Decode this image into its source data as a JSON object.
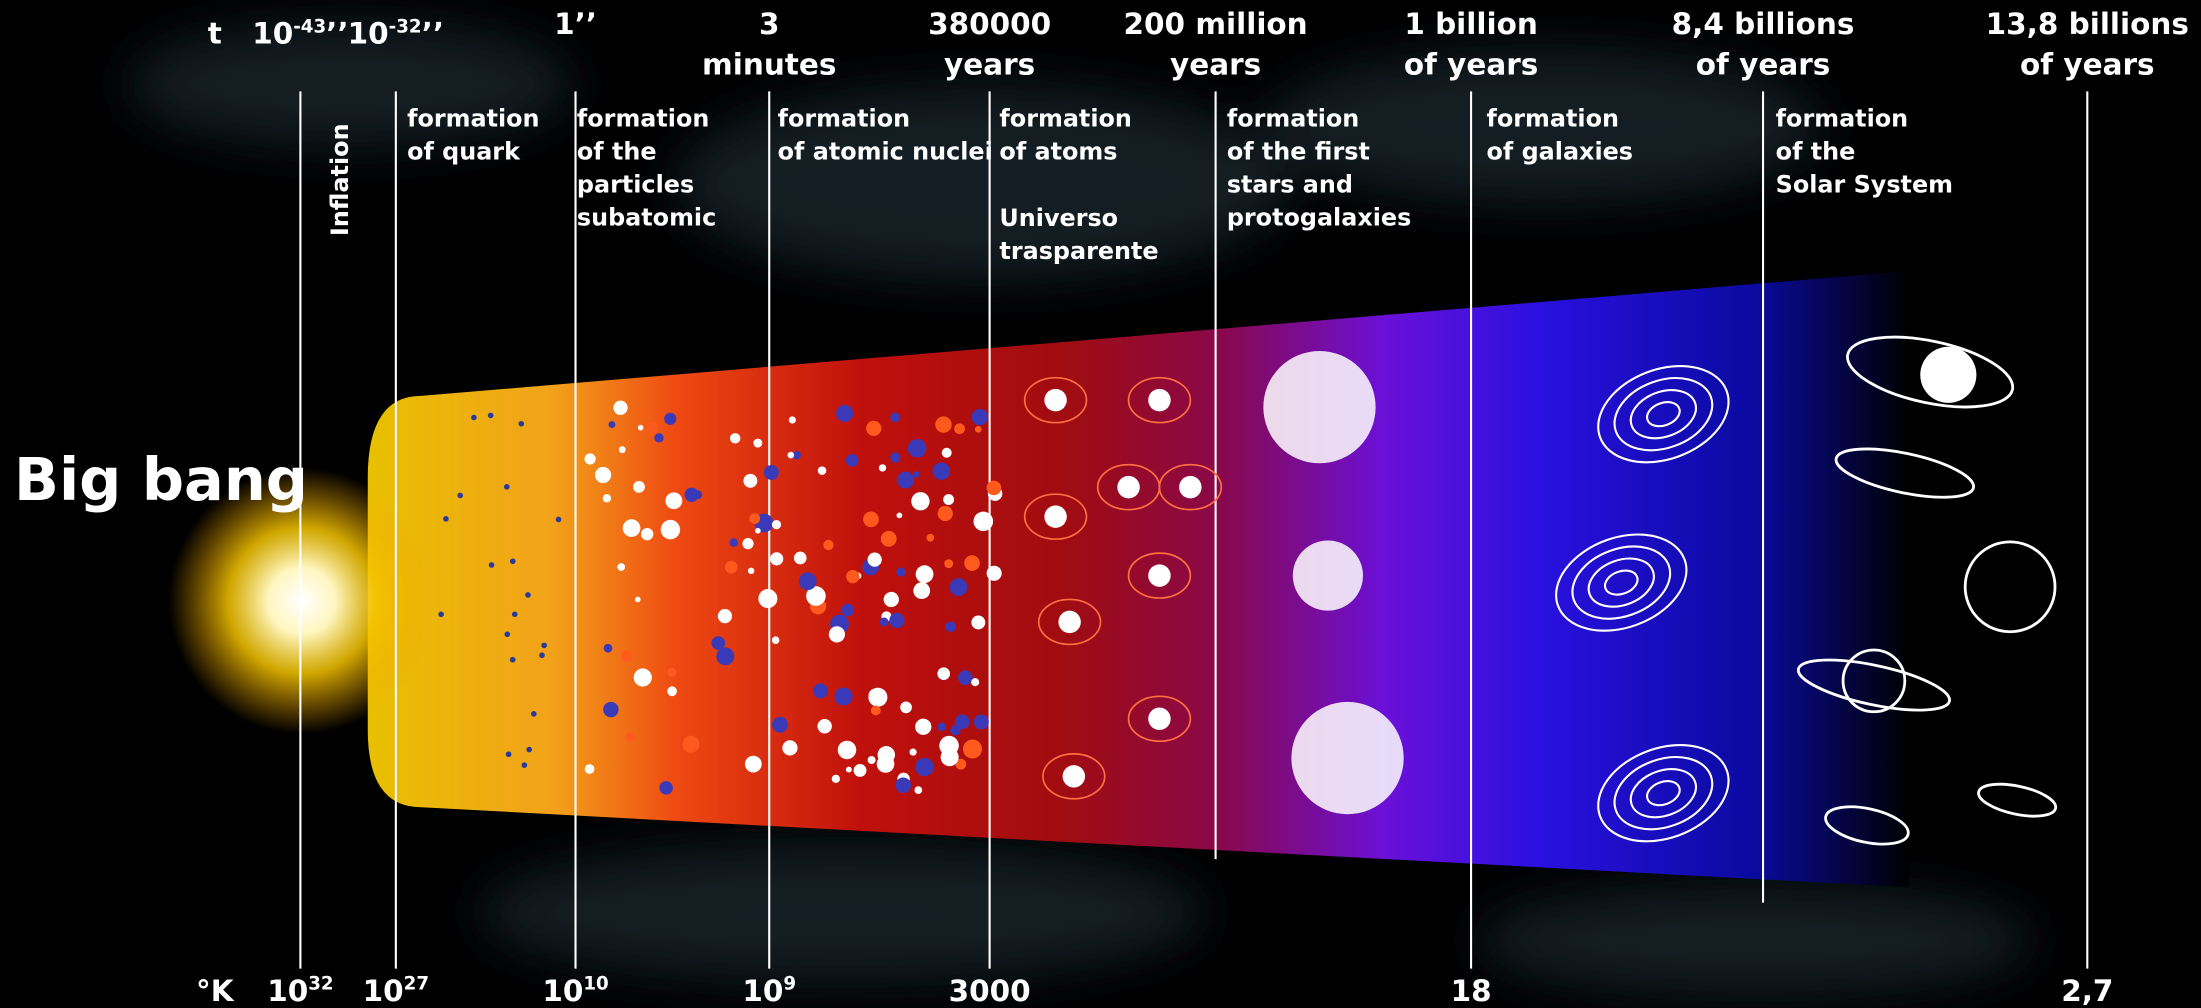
{
  "title": "Big bang",
  "time_symbol": "t",
  "times": [
    {
      "base": "10",
      "exp": "-43",
      "suffix": "’’"
    },
    {
      "base": "10",
      "exp": "-32",
      "suffix": "’’"
    },
    {
      "lines": [
        "1’’"
      ]
    },
    {
      "lines": [
        "3",
        "minutes"
      ]
    },
    {
      "lines": [
        "380000",
        "years"
      ]
    },
    {
      "lines": [
        "200 million",
        "years"
      ]
    },
    {
      "lines": [
        "1 billion",
        "of years"
      ]
    },
    {
      "lines": [
        "8,4 billions",
        "of years"
      ]
    },
    {
      "lines": [
        "13,8 billions",
        "of years"
      ]
    }
  ],
  "stages": [
    {
      "lines": [
        "Inflation"
      ]
    },
    {
      "lines": [
        "formation",
        "of quark"
      ]
    },
    {
      "lines": [
        "formation",
        "of the",
        "particles",
        "subatomic"
      ]
    },
    {
      "lines": [
        "formation",
        "of atomic nuclei"
      ]
    },
    {
      "lines": [
        "formation",
        "of atoms"
      ],
      "note": [
        "Universo",
        "trasparente"
      ]
    },
    {
      "lines": [
        "formation",
        "of the first",
        "stars and",
        "protogalaxies"
      ]
    },
    {
      "lines": [
        "formation",
        "of galaxies"
      ]
    },
    {
      "lines": [
        "formation",
        "of the",
        "Solar System"
      ]
    }
  ],
  "temperature_unit": "°K",
  "temperatures": [
    {
      "base": "10",
      "exp": "32"
    },
    {
      "base": "10",
      "exp": "27"
    },
    {
      "base": "10",
      "exp": "10"
    },
    {
      "base": "10",
      "exp": "9"
    },
    {
      "text": "3000"
    },
    {
      "text": "18"
    },
    {
      "text": "2,7"
    }
  ]
}
